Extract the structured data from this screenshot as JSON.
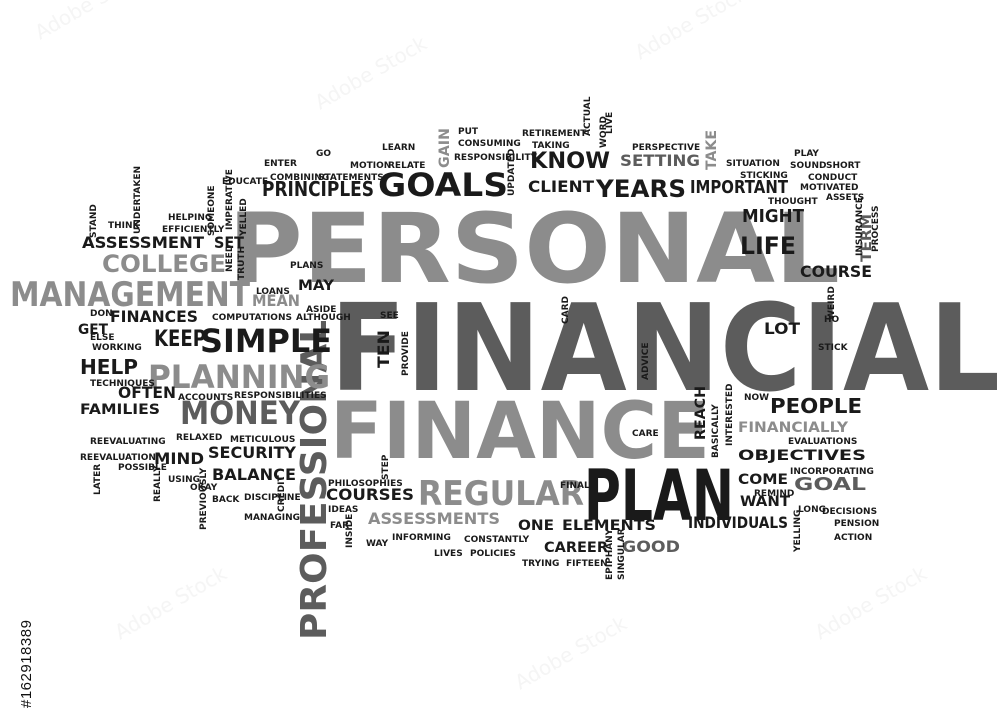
{
  "colors": {
    "background": "#ffffff",
    "dark": "#1a1a1a",
    "mid": "#5c5c5c",
    "light": "#8c8c8c",
    "pale": "#a6a6a6"
  },
  "watermark": "Adobe Stock",
  "stock_id": "#162918389",
  "words": {
    "w1": "PERSONAL",
    "w2": "FINANCIAL",
    "w3": "FINANCE",
    "w4": "PLAN",
    "w5": "PROFESSIONAL",
    "w6": "MANAGEMENT",
    "w7": "REGULAR",
    "w8": "GOALS",
    "w9": "SIMPLE",
    "w10": "PLANNING",
    "w11": "MONEY",
    "w12": "COLLEGE",
    "w13": "YEARS",
    "w14": "KNOW",
    "w15": "PRINCIPLES",
    "w16": "ASSESSMENT",
    "w17": "IMPORTANT",
    "w18": "KEEP",
    "w19": "LIFE",
    "w20": "MIGHT",
    "w21": "HELP",
    "w22": "FINANCES",
    "w23": "PEOPLE",
    "w24": "COURSE",
    "w25": "SETTING",
    "w26": "CLIENT",
    "w27": "OFTEN",
    "w28": "COURSES",
    "w29": "ASSESSMENTS",
    "w30": "INDIVIDUALS",
    "w31": "GOAL",
    "w32": "SECURITY",
    "w33": "BALANCE",
    "w34": "CAREER",
    "w35": "GOOD",
    "w36": "ELEMENTS",
    "w37": "OBJECTIVES",
    "w38": "FINANCIALLY",
    "w39": "FAMILIES",
    "w40": "MIND",
    "w41": "SET",
    "w42": "MEAN",
    "w43": "TEN",
    "w44": "LOT",
    "w45": "COME",
    "w46": "WANT",
    "w47": "REACH",
    "w48": "ONE",
    "w49": "GET",
    "w50": "TERM",
    "w51": "TAKE",
    "w52": "GAIN",
    "w53": "MAY",
    "w54": "DON",
    "w55": "ELSE",
    "w56": "WORKING",
    "w57": "TECHNIQUES",
    "w58": "ACCOUNTS",
    "w59": "RELAXED",
    "w60": "REEVALUATING",
    "w61": "REEVALUATION",
    "w62": "POSSIBLE",
    "w63": "LATER",
    "w64": "REALLY",
    "w65": "USING",
    "w66": "OKAY",
    "w67": "PREVIOUSLY",
    "w68": "BACK",
    "w69": "DISCIPLINE",
    "w70": "MANAGING",
    "w71": "CREDIT",
    "w72": "IDEAS",
    "w73": "FAR",
    "w74": "INSIDE",
    "w75": "WAY",
    "w76": "INFORMING",
    "w77": "CONSTANTLY",
    "w78": "LIVES",
    "w79": "POLICIES",
    "w80": "TRYING",
    "w81": "FIFTEEN",
    "w82": "EPIPHANY",
    "w83": "SINGULAR",
    "w84": "LONG",
    "w85": "DECISIONS",
    "w86": "PENSION",
    "w87": "ACTION",
    "w88": "YELLING",
    "w89": "REMIND",
    "w90": "INCORPORATING",
    "w91": "EVALUATIONS",
    "w92": "INTERESTED",
    "w93": "BASICALLY",
    "w94": "NOW",
    "w95": "CARE",
    "w96": "STEP",
    "w97": "FINAL",
    "w98": "PHILOSOPHIES",
    "w99": "METICULOUS",
    "w100": "RESPONSIBILITIES",
    "w101": "PROVIDE",
    "w102": "SEE",
    "w103": "COMPUTATIONS",
    "w104": "ALTHOUGH",
    "w105": "LOANS",
    "w106": "ASIDE",
    "w107": "PLANS",
    "w108": "TRUTH",
    "w109": "NEED",
    "w110": "YELLED",
    "w111": "IMPERATIVE",
    "w112": "SOMEONE",
    "w113": "HELPING",
    "w114": "EFFICIENTLY",
    "w115": "UNDERTAKEN",
    "w116": "THINK",
    "w117": "STAND",
    "w118": "EDUCATE",
    "w119": "ENTER",
    "w120": "COMBINING",
    "w121": "GO",
    "w122": "MOTION",
    "w123": "STATEMENTS",
    "w124": "LEARN",
    "w125": "RELATE",
    "w126": "PUT",
    "w127": "CONSUMING",
    "w128": "RESPONSIBILITY",
    "w129": "UPDATED",
    "w130": "TAKING",
    "w131": "RETIREMENT",
    "w132": "WORD",
    "w133": "ACTUAL",
    "w134": "LIVE",
    "w135": "PERSPECTIVE",
    "w136": "SITUATION",
    "w137": "STICKING",
    "w138": "PLAY",
    "w139": "SOUND",
    "w140": "SHORT",
    "w141": "CONDUCT",
    "w142": "MOTIVATED",
    "w143": "THOUGHT",
    "w144": "ASSETS",
    "w145": "INSURANCE",
    "w146": "PROCESS",
    "w147": "WEIRD",
    "w148": "HO",
    "w149": "STICK",
    "w150": "CARD",
    "w151": "ADVICE"
  }
}
